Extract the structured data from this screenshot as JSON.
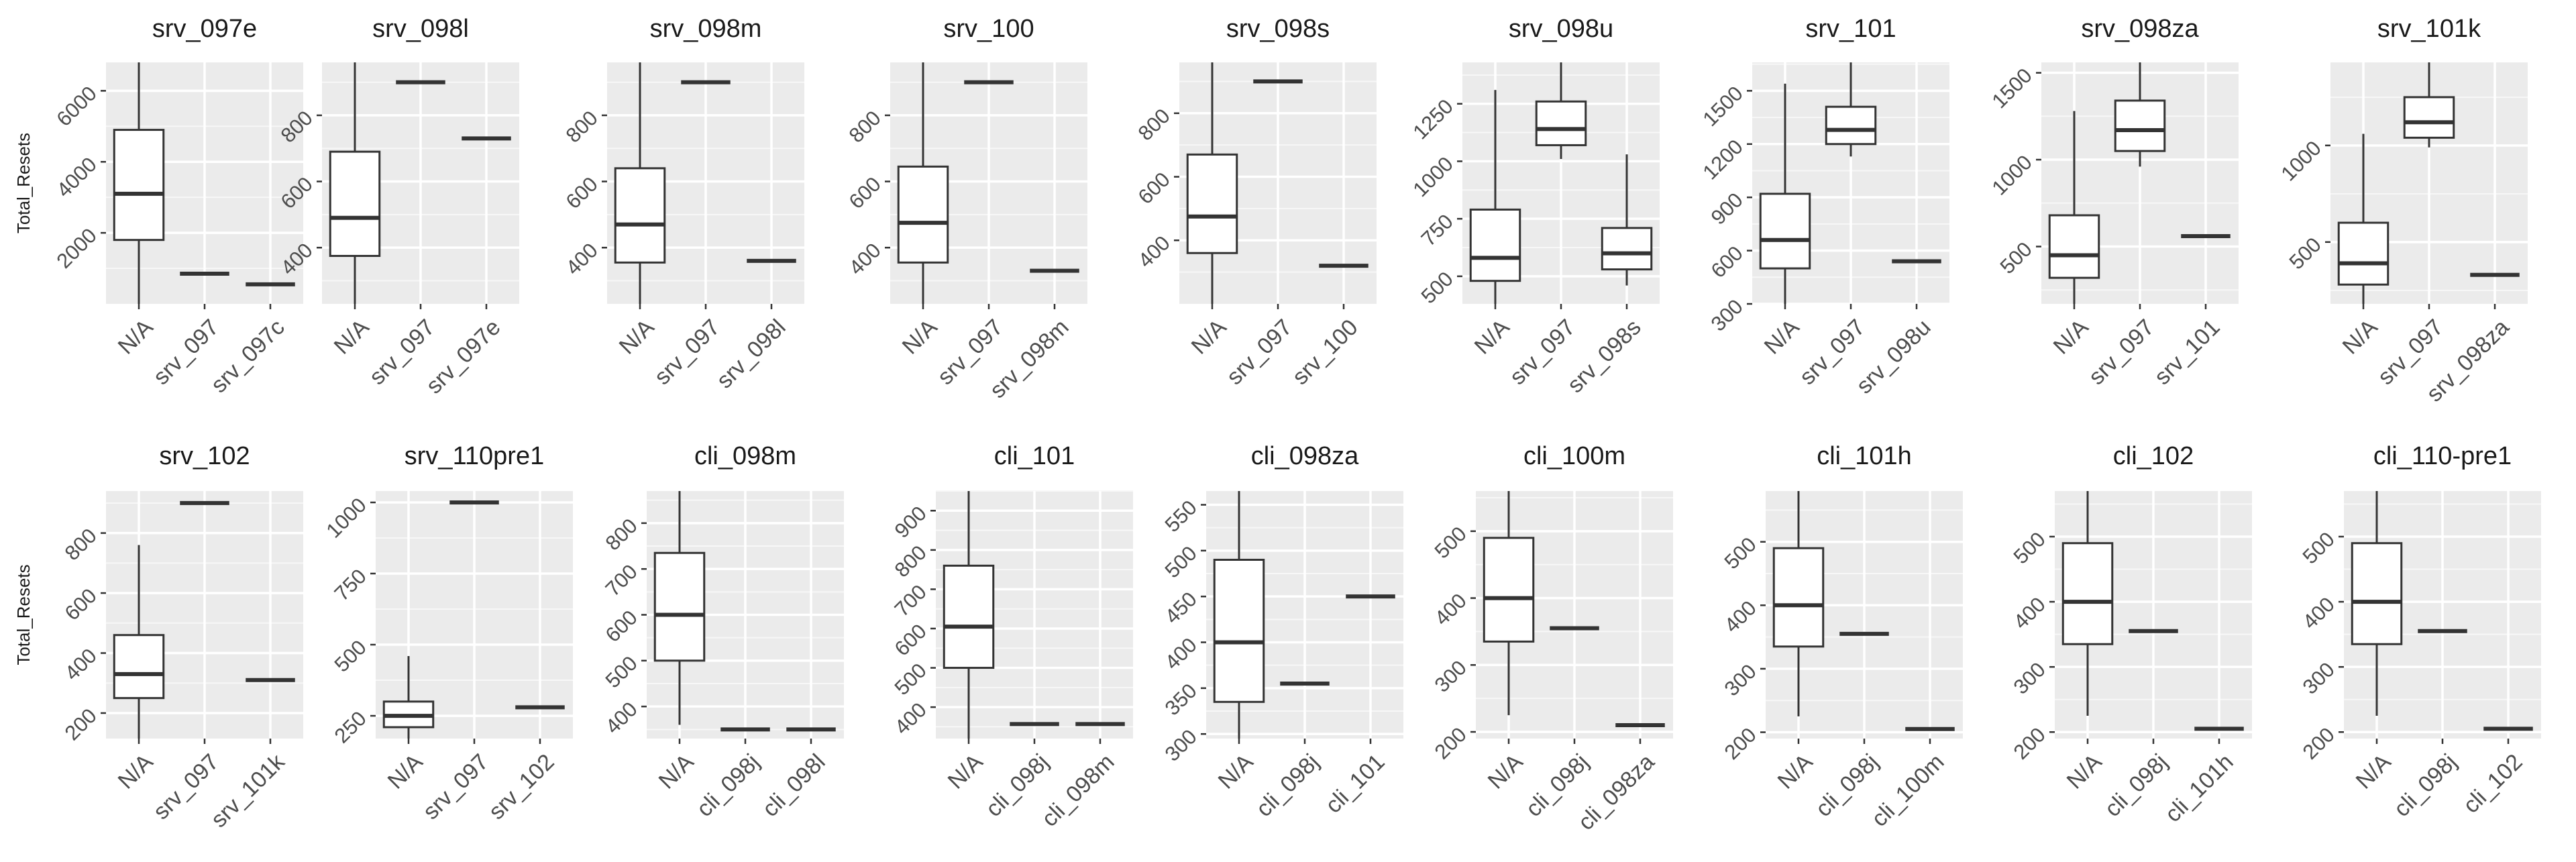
{
  "chart_data": {
    "type": "box",
    "ylabel": "Total_Resets",
    "facets": [
      {
        "title": "srv_097e",
        "ylim": [
          0,
          6800
        ],
        "yticks": [
          2000,
          4000,
          6000
        ],
        "categories": [
          "N/A",
          "srv_097",
          "srv_097c"
        ],
        "boxes": [
          {
            "min": 0,
            "q1": 1800,
            "median": 3100,
            "q3": 4900,
            "max": 6800
          },
          {
            "median": 850
          },
          {
            "median": 550
          }
        ]
      },
      {
        "title": "srv_098l",
        "ylim": [
          230,
          960
        ],
        "yticks": [
          400,
          600,
          800
        ],
        "categories": [
          "N/A",
          "srv_097",
          "srv_097e"
        ],
        "boxes": [
          {
            "min": 230,
            "q1": 375,
            "median": 490,
            "q3": 690,
            "max": 960
          },
          {
            "median": 900
          },
          {
            "median": 730
          }
        ]
      },
      {
        "title": "srv_098m",
        "ylim": [
          230,
          960
        ],
        "yticks": [
          400,
          600,
          800
        ],
        "categories": [
          "N/A",
          "srv_097",
          "srv_098l"
        ],
        "boxes": [
          {
            "min": 230,
            "q1": 355,
            "median": 470,
            "q3": 640,
            "max": 960
          },
          {
            "median": 900
          },
          {
            "median": 360
          }
        ]
      },
      {
        "title": "srv_100",
        "ylim": [
          230,
          960
        ],
        "yticks": [
          400,
          600,
          800
        ],
        "categories": [
          "N/A",
          "srv_097",
          "srv_098m"
        ],
        "boxes": [
          {
            "min": 230,
            "q1": 355,
            "median": 475,
            "q3": 645,
            "max": 960
          },
          {
            "median": 900
          },
          {
            "median": 330
          }
        ]
      },
      {
        "title": "srv_098s",
        "ylim": [
          200,
          960
        ],
        "yticks": [
          400,
          600,
          800
        ],
        "categories": [
          "N/A",
          "srv_097",
          "srv_100"
        ],
        "boxes": [
          {
            "min": 200,
            "q1": 360,
            "median": 475,
            "q3": 670,
            "max": 960
          },
          {
            "median": 900
          },
          {
            "median": 320
          }
        ]
      },
      {
        "title": "srv_098u",
        "ylim": [
          380,
          1430
        ],
        "yticks": [
          500,
          750,
          1000,
          1250
        ],
        "categories": [
          "N/A",
          "srv_097",
          "srv_098s"
        ],
        "boxes": [
          {
            "min": 380,
            "q1": 480,
            "median": 580,
            "q3": 790,
            "max": 1310
          },
          {
            "min": 1010,
            "q1": 1070,
            "median": 1140,
            "q3": 1260,
            "max": 1430
          },
          {
            "min": 460,
            "q1": 530,
            "median": 600,
            "q3": 710,
            "max": 1030
          }
        ]
      },
      {
        "title": "srv_101",
        "ylim": [
          300,
          1660
        ],
        "yticks": [
          300,
          600,
          900,
          1200,
          1500
        ],
        "categories": [
          "N/A",
          "srv_097",
          "srv_098u"
        ],
        "boxes": [
          {
            "min": 300,
            "q1": 500,
            "median": 660,
            "q3": 920,
            "max": 1540
          },
          {
            "min": 1130,
            "q1": 1200,
            "median": 1280,
            "q3": 1410,
            "max": 1660
          },
          {
            "median": 540
          }
        ]
      },
      {
        "title": "srv_098za",
        "ylim": [
          170,
          1560
        ],
        "yticks": [
          500,
          1000,
          1500
        ],
        "categories": [
          "N/A",
          "srv_097",
          "srv_101"
        ],
        "boxes": [
          {
            "min": 170,
            "q1": 320,
            "median": 450,
            "q3": 680,
            "max": 1280
          },
          {
            "min": 960,
            "q1": 1050,
            "median": 1170,
            "q3": 1340,
            "max": 1560
          },
          {
            "median": 560
          }
        ]
      },
      {
        "title": "srv_101k",
        "ylim": [
          180,
          1430
        ],
        "yticks": [
          500,
          1000
        ],
        "categories": [
          "N/A",
          "srv_097",
          "srv_098za"
        ],
        "boxes": [
          {
            "min": 180,
            "q1": 280,
            "median": 390,
            "q3": 600,
            "max": 1060
          },
          {
            "min": 990,
            "q1": 1040,
            "median": 1120,
            "q3": 1250,
            "max": 1430
          },
          {
            "median": 330
          }
        ]
      },
      {
        "title": "srv_102",
        "ylim": [
          115,
          940
        ],
        "yticks": [
          200,
          400,
          600,
          800
        ],
        "categories": [
          "N/A",
          "srv_097",
          "srv_101k"
        ],
        "boxes": [
          {
            "min": 115,
            "q1": 250,
            "median": 330,
            "q3": 460,
            "max": 760
          },
          {
            "median": 900
          },
          {
            "median": 310
          }
        ]
      },
      {
        "title": "srv_110pre1",
        "ylim": [
          170,
          1040
        ],
        "yticks": [
          250,
          500,
          750,
          1000
        ],
        "categories": [
          "N/A",
          "srv_097",
          "srv_102"
        ],
        "boxes": [
          {
            "min": 170,
            "q1": 210,
            "median": 250,
            "q3": 300,
            "max": 460
          },
          {
            "median": 1000
          },
          {
            "median": 280
          }
        ]
      },
      {
        "title": "cli_098m",
        "ylim": [
          330,
          870
        ],
        "yticks": [
          400,
          500,
          600,
          700,
          800
        ],
        "categories": [
          "N/A",
          "cli_098j",
          "cli_098l"
        ],
        "boxes": [
          {
            "min": 360,
            "q1": 500,
            "median": 600,
            "q3": 735,
            "max": 870
          },
          {
            "median": 350
          },
          {
            "median": 350
          }
        ]
      },
      {
        "title": "cli_101",
        "ylim": [
          320,
          950
        ],
        "yticks": [
          400,
          500,
          600,
          700,
          800,
          900
        ],
        "categories": [
          "N/A",
          "cli_098j",
          "cli_098m"
        ],
        "boxes": [
          {
            "min": 320,
            "q1": 500,
            "median": 605,
            "q3": 760,
            "max": 950
          },
          {
            "median": 357
          },
          {
            "median": 357
          }
        ]
      },
      {
        "title": "cli_098za",
        "ylim": [
          295,
          565
        ],
        "yticks": [
          300,
          350,
          400,
          450,
          500,
          550
        ],
        "categories": [
          "N/A",
          "cli_098j",
          "cli_101"
        ],
        "boxes": [
          {
            "min": 295,
            "q1": 335,
            "median": 400,
            "q3": 490,
            "max": 565
          },
          {
            "median": 355
          },
          {
            "median": 450
          }
        ]
      },
      {
        "title": "cli_100m",
        "ylim": [
          190,
          560
        ],
        "yticks": [
          200,
          300,
          400,
          500
        ],
        "categories": [
          "N/A",
          "cli_098j",
          "cli_098za"
        ],
        "boxes": [
          {
            "min": 225,
            "q1": 335,
            "median": 400,
            "q3": 490,
            "max": 560
          },
          {
            "median": 355
          },
          {
            "median": 210
          }
        ]
      },
      {
        "title": "cli_101h",
        "ylim": [
          190,
          580
        ],
        "yticks": [
          200,
          300,
          400,
          500
        ],
        "categories": [
          "N/A",
          "cli_098j",
          "cli_100m"
        ],
        "boxes": [
          {
            "min": 225,
            "q1": 335,
            "median": 400,
            "q3": 490,
            "max": 580
          },
          {
            "median": 355
          },
          {
            "median": 205
          }
        ]
      },
      {
        "title": "cli_102",
        "ylim": [
          190,
          570
        ],
        "yticks": [
          200,
          300,
          400,
          500
        ],
        "categories": [
          "N/A",
          "cli_098j",
          "cli_101h"
        ],
        "boxes": [
          {
            "min": 225,
            "q1": 335,
            "median": 400,
            "q3": 490,
            "max": 570
          },
          {
            "median": 355
          },
          {
            "median": 205
          }
        ]
      },
      {
        "title": "cli_110-pre1",
        "ylim": [
          190,
          570
        ],
        "yticks": [
          200,
          300,
          400,
          500
        ],
        "categories": [
          "N/A",
          "cli_098j",
          "cli_102"
        ],
        "boxes": [
          {
            "min": 225,
            "q1": 335,
            "median": 400,
            "q3": 490,
            "max": 570
          },
          {
            "median": 355
          },
          {
            "median": 205
          }
        ]
      }
    ]
  }
}
